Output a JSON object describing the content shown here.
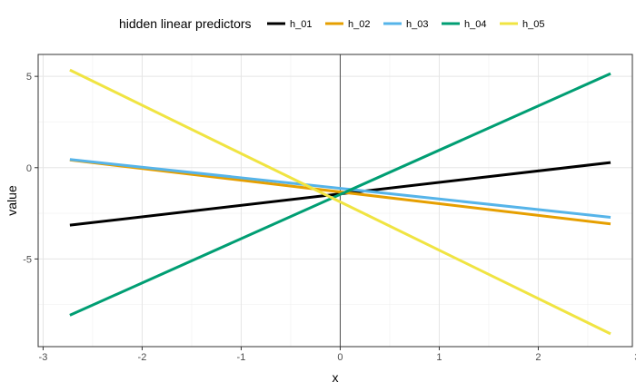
{
  "chart_data": {
    "type": "line",
    "legend": {
      "title": "hidden linear predictors",
      "position": "top"
    },
    "xlabel": "x",
    "ylabel": "value",
    "xlim": [
      -3.05,
      2.95
    ],
    "ylim": [
      -9.8,
      6.2
    ],
    "x_ticks": [
      -3,
      -2,
      -1,
      0,
      1,
      2,
      3
    ],
    "x_tick_labels": [
      "-3",
      "-2",
      "-1",
      "0",
      "1",
      "2",
      "3"
    ],
    "y_ticks": [
      -5,
      0,
      5
    ],
    "y_tick_labels": [
      "-5",
      "0",
      "5"
    ],
    "grid": true,
    "vline_x": 0,
    "series": [
      {
        "name": "h_01",
        "color": "#000000",
        "x": [
          -2.73,
          2.73
        ],
        "y": [
          -3.15,
          0.28
        ]
      },
      {
        "name": "h_02",
        "color": "#E69F00",
        "x": [
          -2.73,
          2.73
        ],
        "y": [
          0.42,
          -3.08
        ]
      },
      {
        "name": "h_03",
        "color": "#56B4E9",
        "x": [
          -2.73,
          2.73
        ],
        "y": [
          0.45,
          -2.72
        ]
      },
      {
        "name": "h_04",
        "color": "#009E73",
        "x": [
          -2.73,
          2.73
        ],
        "y": [
          -8.08,
          5.15
        ]
      },
      {
        "name": "h_05",
        "color": "#F0E442",
        "x": [
          -2.73,
          2.73
        ],
        "y": [
          5.35,
          -9.1
        ]
      }
    ]
  }
}
